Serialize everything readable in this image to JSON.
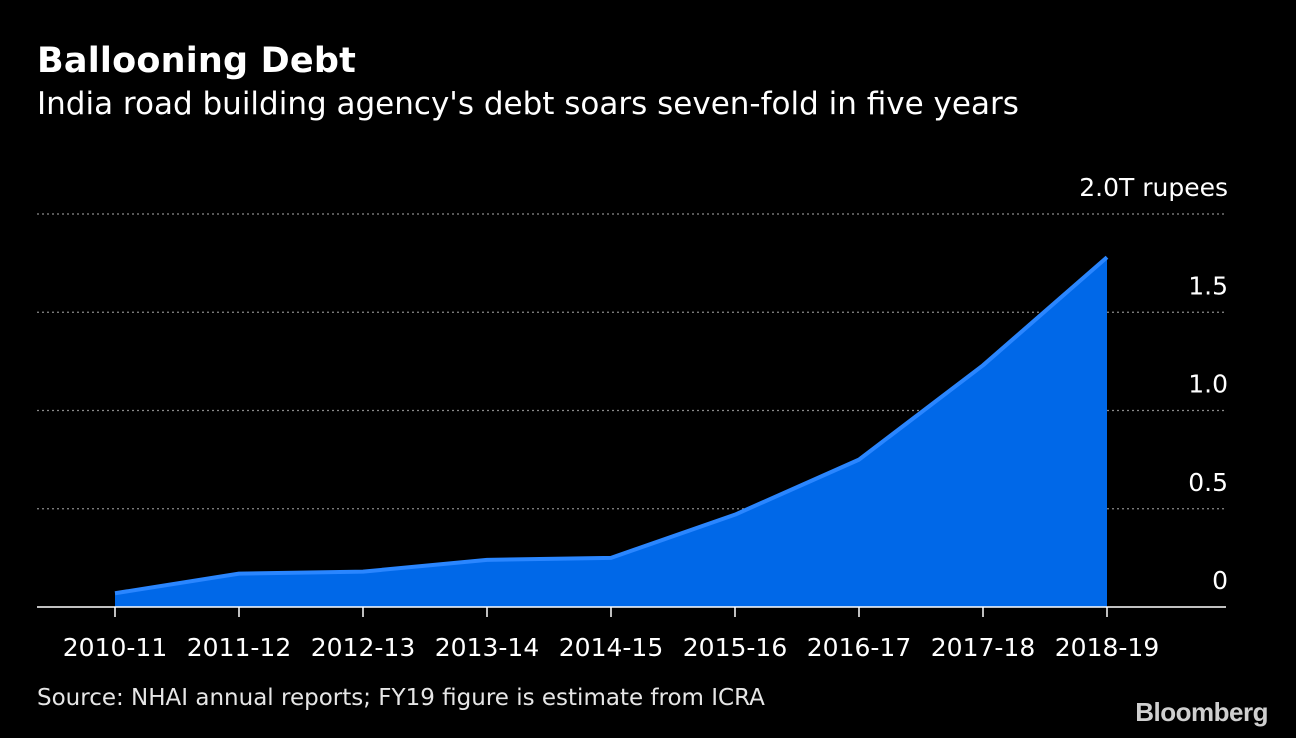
{
  "header": {
    "title": "Ballooning Debt",
    "subtitle": "India road building agency's debt soars seven-fold in five years"
  },
  "footer": {
    "source": "Source: NHAI annual reports; FY19 figure is estimate from ICRA",
    "brand": "Bloomberg"
  },
  "colors": {
    "background": "#000000",
    "area_fill": "#0068e8",
    "line": "#2a86ff",
    "grid": "#8a8a8a",
    "text": "#ffffff"
  },
  "chart_data": {
    "type": "area",
    "title": "Ballooning Debt",
    "subtitle": "India road building agency's debt soars seven-fold in five years",
    "unit_label": "2.0T rupees",
    "categories": [
      "2010-11",
      "2011-12",
      "2012-13",
      "2013-14",
      "2014-15",
      "2015-16",
      "2016-17",
      "2017-18",
      "2018-19"
    ],
    "series": [
      {
        "values": [
          0.07,
          0.17,
          0.18,
          0.24,
          0.25,
          0.47,
          0.75,
          1.23,
          1.78
        ]
      }
    ],
    "y_ticks": [
      {
        "value": 0,
        "label": "0"
      },
      {
        "value": 0.5,
        "label": "0.5"
      },
      {
        "value": 1.0,
        "label": "1.0"
      },
      {
        "value": 1.5,
        "label": "1.5"
      },
      {
        "value": 2.0,
        "label": "2.0T rupees"
      }
    ],
    "ylim": [
      0,
      2.0
    ],
    "grid": true,
    "axis_position": "right"
  }
}
